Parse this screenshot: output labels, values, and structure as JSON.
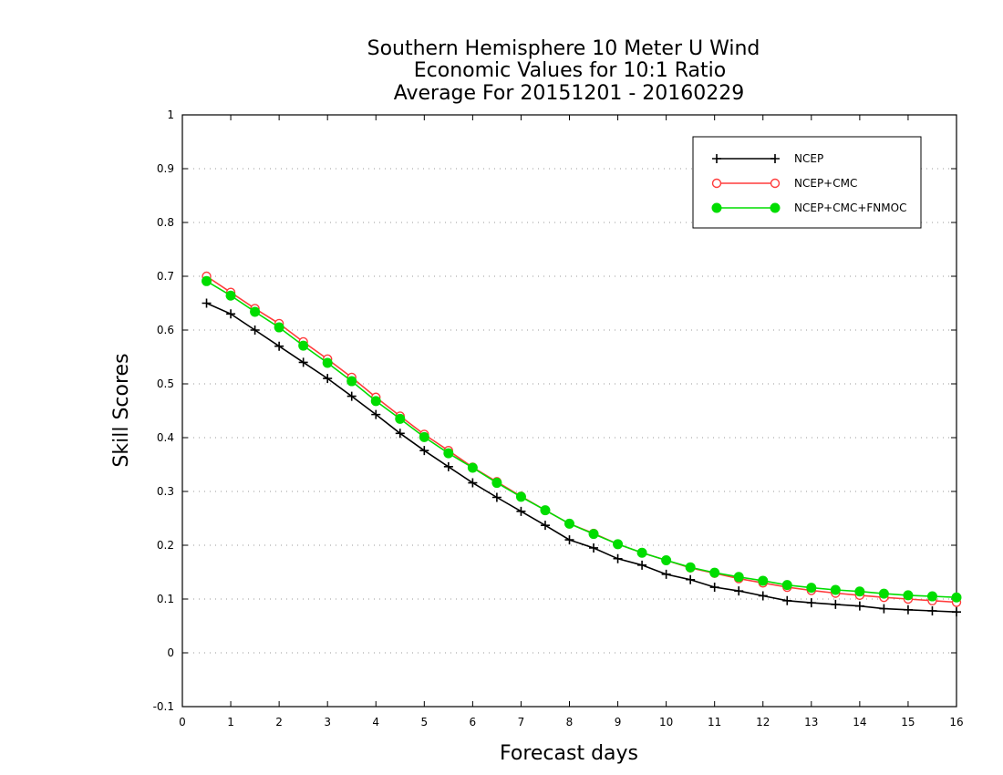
{
  "chart_data": {
    "type": "line",
    "title": [
      "Southern Hemisphere 10 Meter U Wind",
      "Economic Values for 10:1 Ratio",
      "Average For 20151201 - 20160229"
    ],
    "xlabel": "Forecast days",
    "ylabel": "Skill Scores",
    "xlim": [
      0,
      16
    ],
    "ylim": [
      -0.1,
      1
    ],
    "xticks": [
      0,
      1,
      2,
      3,
      4,
      5,
      6,
      7,
      8,
      9,
      10,
      11,
      12,
      13,
      14,
      15,
      16
    ],
    "xtick_labels": [
      "0",
      "1",
      "2",
      "3",
      "4",
      "5",
      "6",
      "7",
      "8",
      "9",
      "10",
      "11",
      "12",
      "13",
      "14",
      "15",
      "16"
    ],
    "yticks": [
      -0.1,
      0,
      0.1,
      0.2,
      0.3,
      0.4,
      0.5,
      0.6,
      0.7,
      0.8,
      0.9,
      1
    ],
    "ytick_labels": [
      "-0.1",
      "0",
      "0.1",
      "0.2",
      "0.3",
      "0.4",
      "0.5",
      "0.6",
      "0.7",
      "0.8",
      "0.9",
      "1"
    ],
    "grid": "horizontal dotted",
    "legend_position": "top-right",
    "x": [
      0.5,
      1,
      1.5,
      2,
      2.5,
      3,
      3.5,
      4,
      4.5,
      5,
      5.5,
      6,
      6.5,
      7,
      7.5,
      8,
      8.5,
      9,
      9.5,
      10,
      10.5,
      11,
      11.5,
      12,
      12.5,
      13,
      13.5,
      14,
      14.5,
      15,
      15.5,
      16
    ],
    "series": [
      {
        "name": "NCEP",
        "color": "#000000",
        "marker": "plus",
        "values": [
          0.65,
          0.63,
          0.6,
          0.57,
          0.54,
          0.51,
          0.477,
          0.443,
          0.408,
          0.376,
          0.346,
          0.316,
          0.289,
          0.263,
          0.237,
          0.21,
          0.195,
          0.175,
          0.163,
          0.146,
          0.136,
          0.122,
          0.115,
          0.106,
          0.097,
          0.093,
          0.09,
          0.087,
          0.082,
          0.08,
          0.078,
          0.076
        ]
      },
      {
        "name": "NCEP+CMC",
        "color": "#ff3b3b",
        "marker": "open-circle",
        "values": [
          0.7,
          0.67,
          0.64,
          0.612,
          0.578,
          0.546,
          0.512,
          0.475,
          0.44,
          0.406,
          0.376,
          0.345,
          0.318,
          0.291,
          0.265,
          0.24,
          0.222,
          0.202,
          0.186,
          0.172,
          0.158,
          0.148,
          0.138,
          0.13,
          0.122,
          0.116,
          0.111,
          0.107,
          0.103,
          0.1,
          0.097,
          0.094
        ]
      },
      {
        "name": "NCEP+CMC+FNMOC",
        "color": "#00dd00",
        "marker": "filled-circle",
        "values": [
          0.691,
          0.664,
          0.634,
          0.605,
          0.571,
          0.539,
          0.505,
          0.468,
          0.435,
          0.401,
          0.371,
          0.344,
          0.316,
          0.29,
          0.265,
          0.24,
          0.221,
          0.202,
          0.186,
          0.172,
          0.159,
          0.149,
          0.141,
          0.134,
          0.126,
          0.121,
          0.117,
          0.114,
          0.11,
          0.107,
          0.105,
          0.103
        ]
      }
    ]
  }
}
